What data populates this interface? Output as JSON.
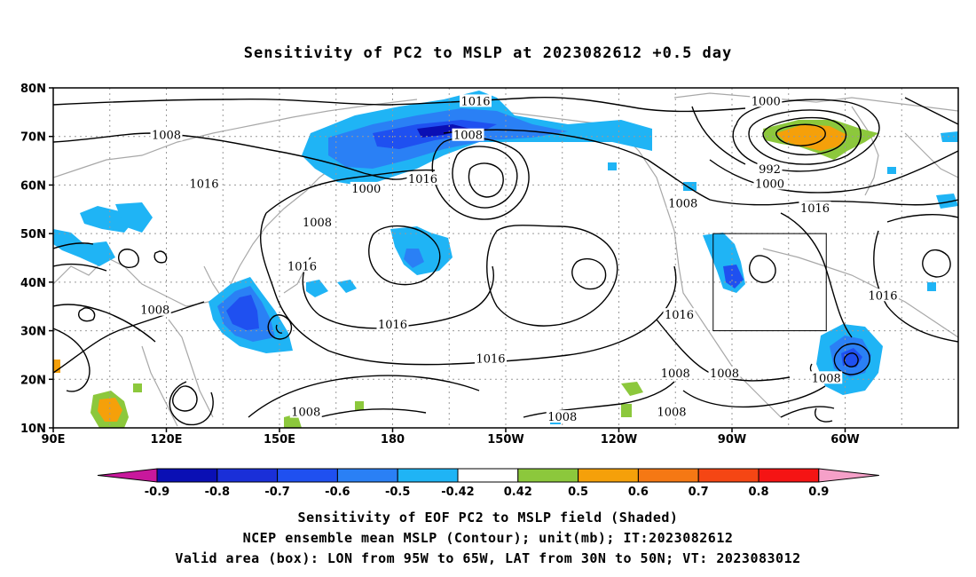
{
  "title": "Sensitivity of PC2 to MSLP at 2023082612 +0.5 day",
  "lat_ticks": [
    "80N",
    "70N",
    "60N",
    "50N",
    "40N",
    "30N",
    "20N",
    "10N"
  ],
  "lon_ticks": [
    "90E",
    "120E",
    "150E",
    "180",
    "150W",
    "120W",
    "90W",
    "60W"
  ],
  "colorbar": {
    "labels": [
      "-0.9",
      "-0.8",
      "-0.7",
      "-0.6",
      "-0.5",
      "-0.42",
      "0.42",
      "0.5",
      "0.6",
      "0.7",
      "0.8",
      "0.9"
    ],
    "colors": [
      "#0a0fb4",
      "#1a2fd8",
      "#1f50f0",
      "#2a80f5",
      "#1fb4f5",
      "#ffffff",
      "#8cc83c",
      "#f5a00a",
      "#f57814",
      "#f54614",
      "#f51414"
    ],
    "low_end_color": "#c8189c",
    "high_end_color": "#f5a0c8"
  },
  "contour_labels": [
    {
      "text": "1016",
      "lon": 202,
      "lat": 77
    },
    {
      "text": "1008",
      "lon": 200,
      "lat": 70
    },
    {
      "text": "1008",
      "lon": 120,
      "lat": 70
    },
    {
      "text": "1016",
      "lon": 130,
      "lat": 60
    },
    {
      "text": "1008",
      "lon": 160,
      "lat": 52
    },
    {
      "text": "1000",
      "lon": 173,
      "lat": 59
    },
    {
      "text": "1016",
      "lon": 188,
      "lat": 61
    },
    {
      "text": "1016",
      "lon": 156,
      "lat": 43
    },
    {
      "text": "1008",
      "lon": 117,
      "lat": 34
    },
    {
      "text": "1016",
      "lon": 180,
      "lat": 31
    },
    {
      "text": "1016",
      "lon": 206,
      "lat": 24
    },
    {
      "text": "1008",
      "lon": 157,
      "lat": 13
    },
    {
      "text": "1008",
      "lon": 225,
      "lat": 12
    },
    {
      "text": "1016",
      "lon": 256,
      "lat": 33
    },
    {
      "text": "1008",
      "lon": 255,
      "lat": 21
    },
    {
      "text": "1008",
      "lon": 268,
      "lat": 21
    },
    {
      "text": "1008",
      "lon": 254,
      "lat": 13
    },
    {
      "text": "1008",
      "lon": 257,
      "lat": 56
    },
    {
      "text": "1000",
      "lon": 279,
      "lat": 77
    },
    {
      "text": "992",
      "lon": 280,
      "lat": 63
    },
    {
      "text": "1000",
      "lon": 280,
      "lat": 60
    },
    {
      "text": "1016",
      "lon": 292,
      "lat": 55
    },
    {
      "text": "1016",
      "lon": 310,
      "lat": 37
    },
    {
      "text": "1008",
      "lon": 295,
      "lat": 20
    }
  ],
  "valid_box": {
    "lon_min": 265,
    "lon_max": 295,
    "lat_min": 30,
    "lat_max": 50
  },
  "caption_line1": "Sensitivity of EOF PC2 to MSLP field (Shaded)",
  "caption_line2": "NCEP ensemble mean MSLP (Contour); unit(mb); IT:2023082612",
  "caption_line3": "Valid area (box): LON from 95W to 65W, LAT from 30N to 50N; VT: 2023083012"
}
